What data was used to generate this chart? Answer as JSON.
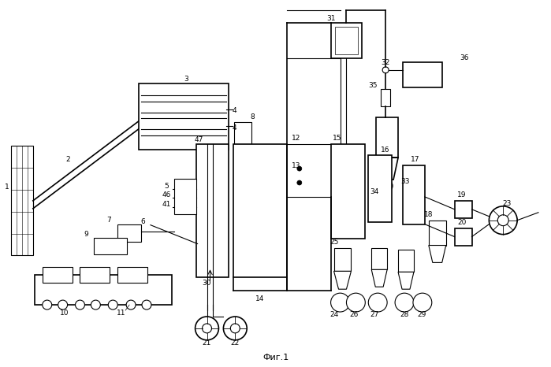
{
  "title": "Фиг.1",
  "bg_color": "#ffffff",
  "figsize": [
    6.99,
    4.66
  ],
  "dpi": 100
}
